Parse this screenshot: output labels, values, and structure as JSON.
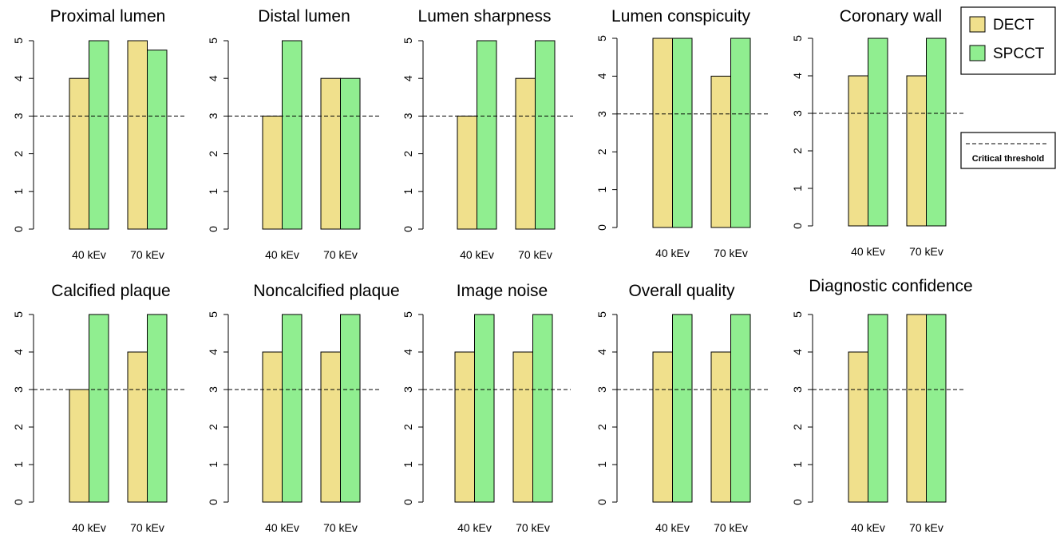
{
  "chart_data": {
    "type": "bar",
    "layout": "small multiples, 2 rows x 5 panels",
    "colors": {
      "DECT": "#f0e08c",
      "SPCCT": "#90ee90",
      "bar_border": "#000000",
      "threshold_line": "#000000"
    },
    "categories": [
      "40 kEv",
      "70 kEv"
    ],
    "ylim": [
      0,
      5
    ],
    "yticks": [
      "0",
      "1",
      "2",
      "3",
      "4",
      "5"
    ],
    "threshold": 3,
    "legend": {
      "entries": [
        {
          "label": "DECT",
          "color": "#f0e08c"
        },
        {
          "label": "SPCCT",
          "color": "#90ee90"
        }
      ],
      "line_label": "Critical threshold",
      "placement": "top-right"
    },
    "panels": [
      {
        "title": "Proximal lumen",
        "series": [
          {
            "name": "DECT",
            "values": [
              4,
              5
            ]
          },
          {
            "name": "SPCCT",
            "values": [
              5,
              4.75
            ]
          }
        ]
      },
      {
        "title": "Distal lumen",
        "series": [
          {
            "name": "DECT",
            "values": [
              3,
              4
            ]
          },
          {
            "name": "SPCCT",
            "values": [
              5,
              4
            ]
          }
        ]
      },
      {
        "title": "Lumen sharpness",
        "series": [
          {
            "name": "DECT",
            "values": [
              3,
              4
            ]
          },
          {
            "name": "SPCCT",
            "values": [
              5,
              5
            ]
          }
        ]
      },
      {
        "title": "Lumen conspicuity",
        "series": [
          {
            "name": "DECT",
            "values": [
              5,
              4
            ]
          },
          {
            "name": "SPCCT",
            "values": [
              5,
              5
            ]
          }
        ]
      },
      {
        "title": "Coronary wall",
        "series": [
          {
            "name": "DECT",
            "values": [
              4,
              4
            ]
          },
          {
            "name": "SPCCT",
            "values": [
              5,
              5
            ]
          }
        ]
      },
      {
        "title": "Calcified plaque",
        "series": [
          {
            "name": "DECT",
            "values": [
              3,
              4
            ]
          },
          {
            "name": "SPCCT",
            "values": [
              5,
              5
            ]
          }
        ]
      },
      {
        "title": "Noncalcified plaque",
        "series": [
          {
            "name": "DECT",
            "values": [
              4,
              4
            ]
          },
          {
            "name": "SPCCT",
            "values": [
              5,
              5
            ]
          }
        ]
      },
      {
        "title": "Image noise",
        "series": [
          {
            "name": "DECT",
            "values": [
              4,
              4
            ]
          },
          {
            "name": "SPCCT",
            "values": [
              5,
              5
            ]
          }
        ]
      },
      {
        "title": "Overall quality",
        "series": [
          {
            "name": "DECT",
            "values": [
              4,
              4
            ]
          },
          {
            "name": "SPCCT",
            "values": [
              5,
              5
            ]
          }
        ]
      },
      {
        "title": "Diagnostic confidence",
        "series": [
          {
            "name": "DECT",
            "values": [
              4,
              5
            ]
          },
          {
            "name": "SPCCT",
            "values": [
              5,
              5
            ]
          }
        ]
      }
    ]
  }
}
